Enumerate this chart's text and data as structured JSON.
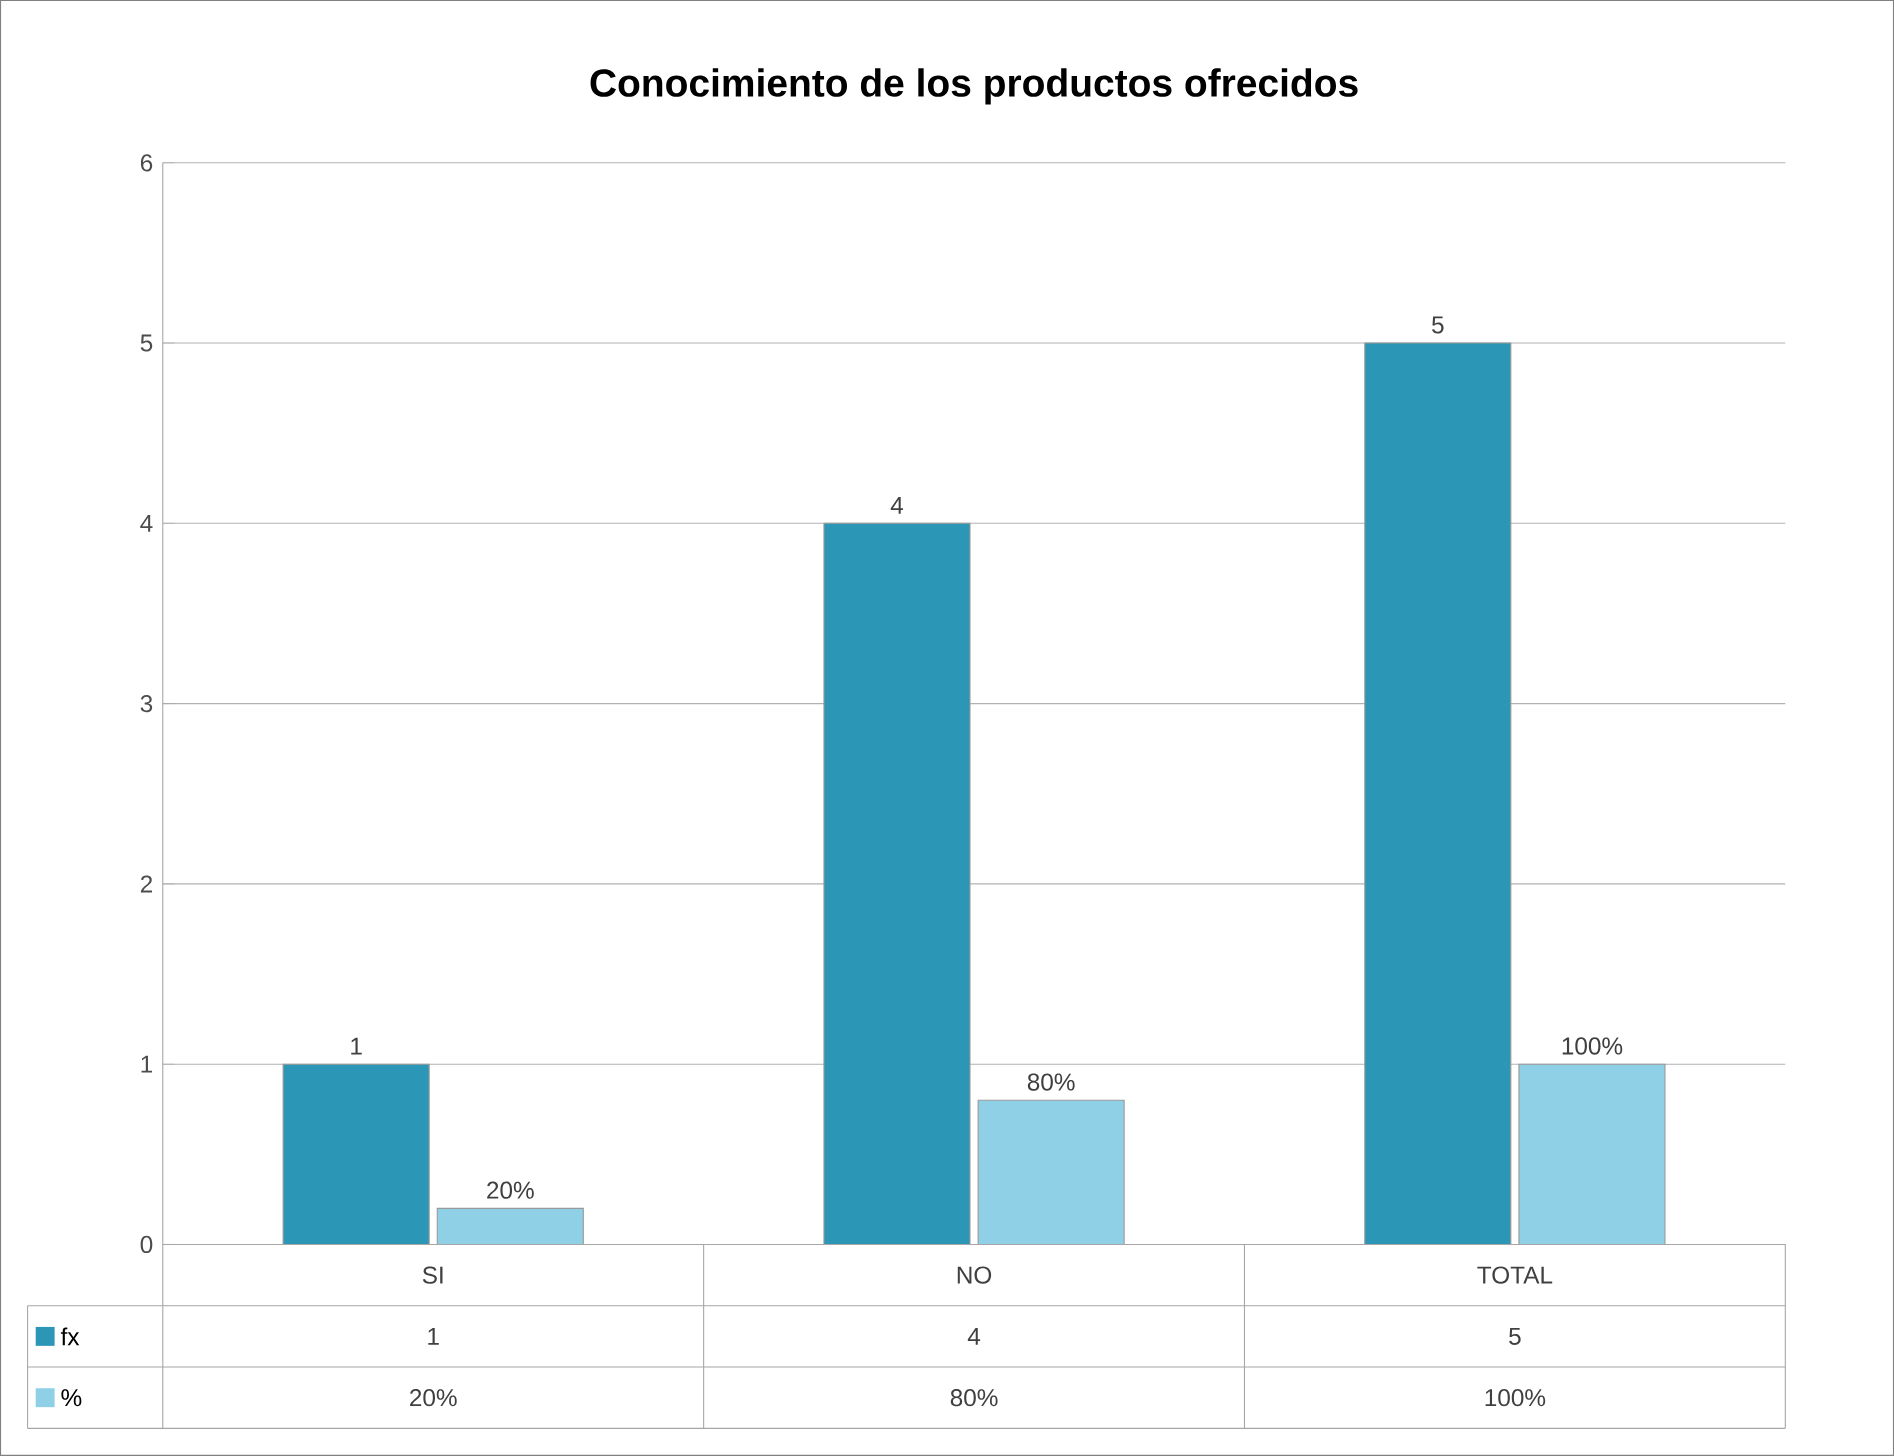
{
  "chart_data": {
    "type": "bar",
    "title": "Conocimiento de los productos ofrecidos",
    "categories": [
      "SI",
      "NO",
      "TOTAL"
    ],
    "series": [
      {
        "name": "fx",
        "color": "#2b96b6",
        "values": [
          1,
          4,
          5
        ],
        "value_labels": [
          "1",
          "4",
          "5"
        ]
      },
      {
        "name": "%",
        "color": "#8fd0e6",
        "values": [
          0.2,
          0.8,
          1.0
        ],
        "value_labels": [
          "20%",
          "80%",
          "100%"
        ]
      }
    ],
    "data_labels": true,
    "ylim": [
      0,
      6
    ],
    "yticks": [
      0,
      1,
      2,
      3,
      4,
      5,
      6
    ],
    "grid": "y",
    "legend": "bottom"
  }
}
